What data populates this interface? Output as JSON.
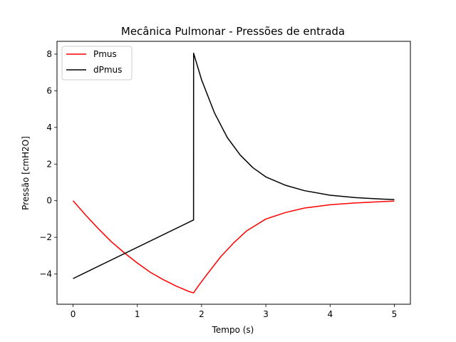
{
  "chart_data": {
    "type": "line",
    "title": "Mecânica Pulmonar - Pressões de entrada",
    "xlabel": "Tempo (s)",
    "ylabel": "Pressão [cmH2O]",
    "xlim": [
      -0.25,
      5.25
    ],
    "ylim": [
      -5.65,
      8.7
    ],
    "xticks": [
      0,
      1,
      2,
      3,
      4,
      5
    ],
    "xtick_labels": [
      "0",
      "1",
      "2",
      "3",
      "4",
      "5"
    ],
    "yticks": [
      -4,
      -2,
      0,
      2,
      4,
      6,
      8
    ],
    "ytick_labels": [
      "−4",
      "−2",
      "0",
      "2",
      "4",
      "6",
      "8"
    ],
    "grid": false,
    "legend": "top-left",
    "series": [
      {
        "name": "Pmus",
        "color": "#ff0000",
        "x": [
          0,
          0.2,
          0.4,
          0.6,
          0.8,
          1.0,
          1.2,
          1.4,
          1.6,
          1.8,
          1.875,
          1.95,
          2.1,
          2.3,
          2.5,
          2.7,
          3.0,
          3.3,
          3.6,
          4.0,
          4.4,
          4.8,
          5.0
        ],
        "y": [
          0,
          -0.8,
          -1.55,
          -2.25,
          -2.85,
          -3.4,
          -3.9,
          -4.3,
          -4.65,
          -4.95,
          -5.03,
          -4.65,
          -3.95,
          -3.05,
          -2.3,
          -1.65,
          -1.0,
          -0.65,
          -0.4,
          -0.22,
          -0.12,
          -0.05,
          -0.02
        ]
      },
      {
        "name": "dPmus",
        "color": "#000000",
        "x": [
          0,
          1.875,
          1.876,
          2.0,
          2.2,
          2.4,
          2.6,
          2.8,
          3.0,
          3.3,
          3.6,
          4.0,
          4.4,
          4.8,
          5.0
        ],
        "y": [
          -4.25,
          -1.05,
          8.05,
          6.6,
          4.8,
          3.45,
          2.5,
          1.8,
          1.3,
          0.85,
          0.55,
          0.3,
          0.17,
          0.09,
          0.06
        ]
      }
    ]
  }
}
